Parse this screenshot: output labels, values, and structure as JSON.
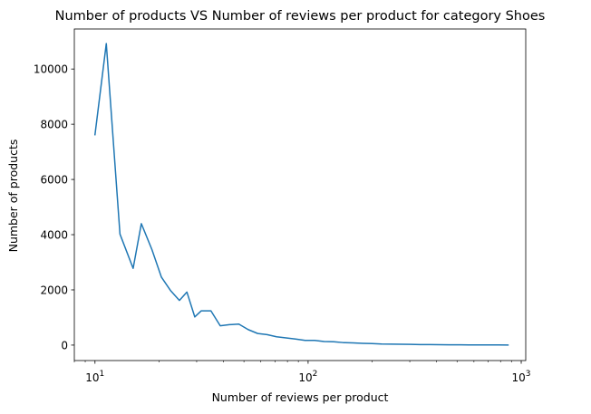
{
  "chart_data": {
    "type": "line",
    "title": "Number of products VS Number of reviews per product for category Shoes",
    "xlabel": "Number of reviews per product",
    "ylabel": "Number of products",
    "xscale": "log",
    "xlim": [
      8.0,
      1050
    ],
    "ylim": [
      -560,
      11450
    ],
    "grid": false,
    "line_color": "#1f77b4",
    "x_major_ticks": [
      {
        "value": 10,
        "base": "10",
        "exp": "1"
      },
      {
        "value": 100,
        "base": "10",
        "exp": "2"
      },
      {
        "value": 1000,
        "base": "10",
        "exp": "3"
      }
    ],
    "y_ticks": [
      {
        "value": 0,
        "label": "0"
      },
      {
        "value": 2000,
        "label": "2000"
      },
      {
        "value": 4000,
        "label": "4000"
      },
      {
        "value": 6000,
        "label": "6000"
      },
      {
        "value": 8000,
        "label": "8000"
      },
      {
        "value": 10000,
        "label": "10000"
      }
    ],
    "series": [
      {
        "name": "Shoes",
        "x": [
          10,
          11.3,
          13.1,
          15.1,
          16.5,
          18.5,
          20.5,
          22.6,
          24.9,
          27.0,
          29.4,
          31.5,
          35.0,
          38.7,
          42.7,
          47.3,
          52.4,
          58.0,
          64.2,
          71.1,
          78.8,
          87.3,
          96.8,
          107.3,
          119.0,
          131.9,
          146.3,
          162.2,
          179.9,
          199.6,
          221.5,
          245.7,
          272.7,
          302.7,
          336.0,
          373.1,
          414.3,
          460.2,
          511.1,
          567.9,
          631.1,
          701.5,
          779.8,
          867.0
        ],
        "y": [
          7620,
          10920,
          4020,
          2780,
          4400,
          3460,
          2460,
          1980,
          1620,
          1920,
          1020,
          1240,
          1240,
          700,
          740,
          760,
          560,
          420,
          380,
          300,
          260,
          220,
          170,
          170,
          130,
          120,
          90,
          80,
          65,
          55,
          40,
          35,
          30,
          25,
          20,
          18,
          15,
          12,
          10,
          8,
          6,
          5,
          4,
          3
        ]
      }
    ]
  }
}
